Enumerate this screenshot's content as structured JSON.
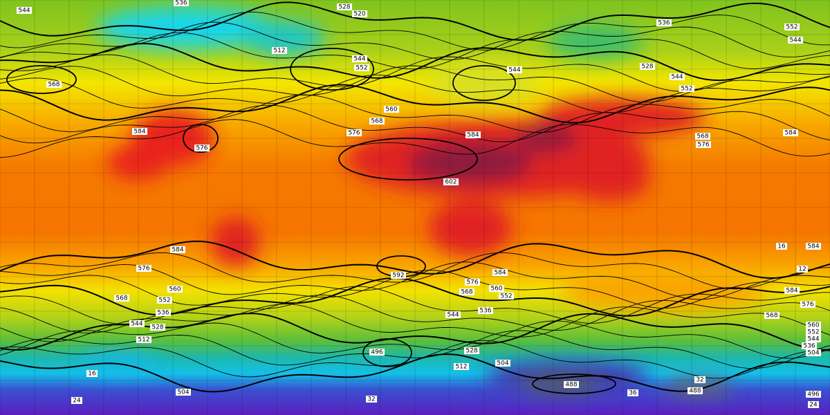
{
  "contour_labels": [
    "544",
    "536",
    "528",
    "520",
    "512",
    "544",
    "552",
    "560",
    "568",
    "576",
    "584",
    "602",
    "576",
    "584",
    "568",
    "584",
    "576",
    "568",
    "560",
    "552",
    "544",
    "536",
    "528",
    "512",
    "592",
    "584",
    "576",
    "568",
    "560",
    "552",
    "544",
    "536",
    "528",
    "512",
    "504",
    "496",
    "488",
    "488",
    "504",
    "544",
    "528",
    "536",
    "552",
    "544",
    "544",
    "552",
    "568",
    "576",
    "584",
    "584",
    "584",
    "576",
    "568",
    "560",
    "552",
    "544",
    "536",
    "504",
    "496",
    "24",
    "32",
    "36",
    "32",
    "24",
    "16",
    "12",
    "16"
  ]
}
